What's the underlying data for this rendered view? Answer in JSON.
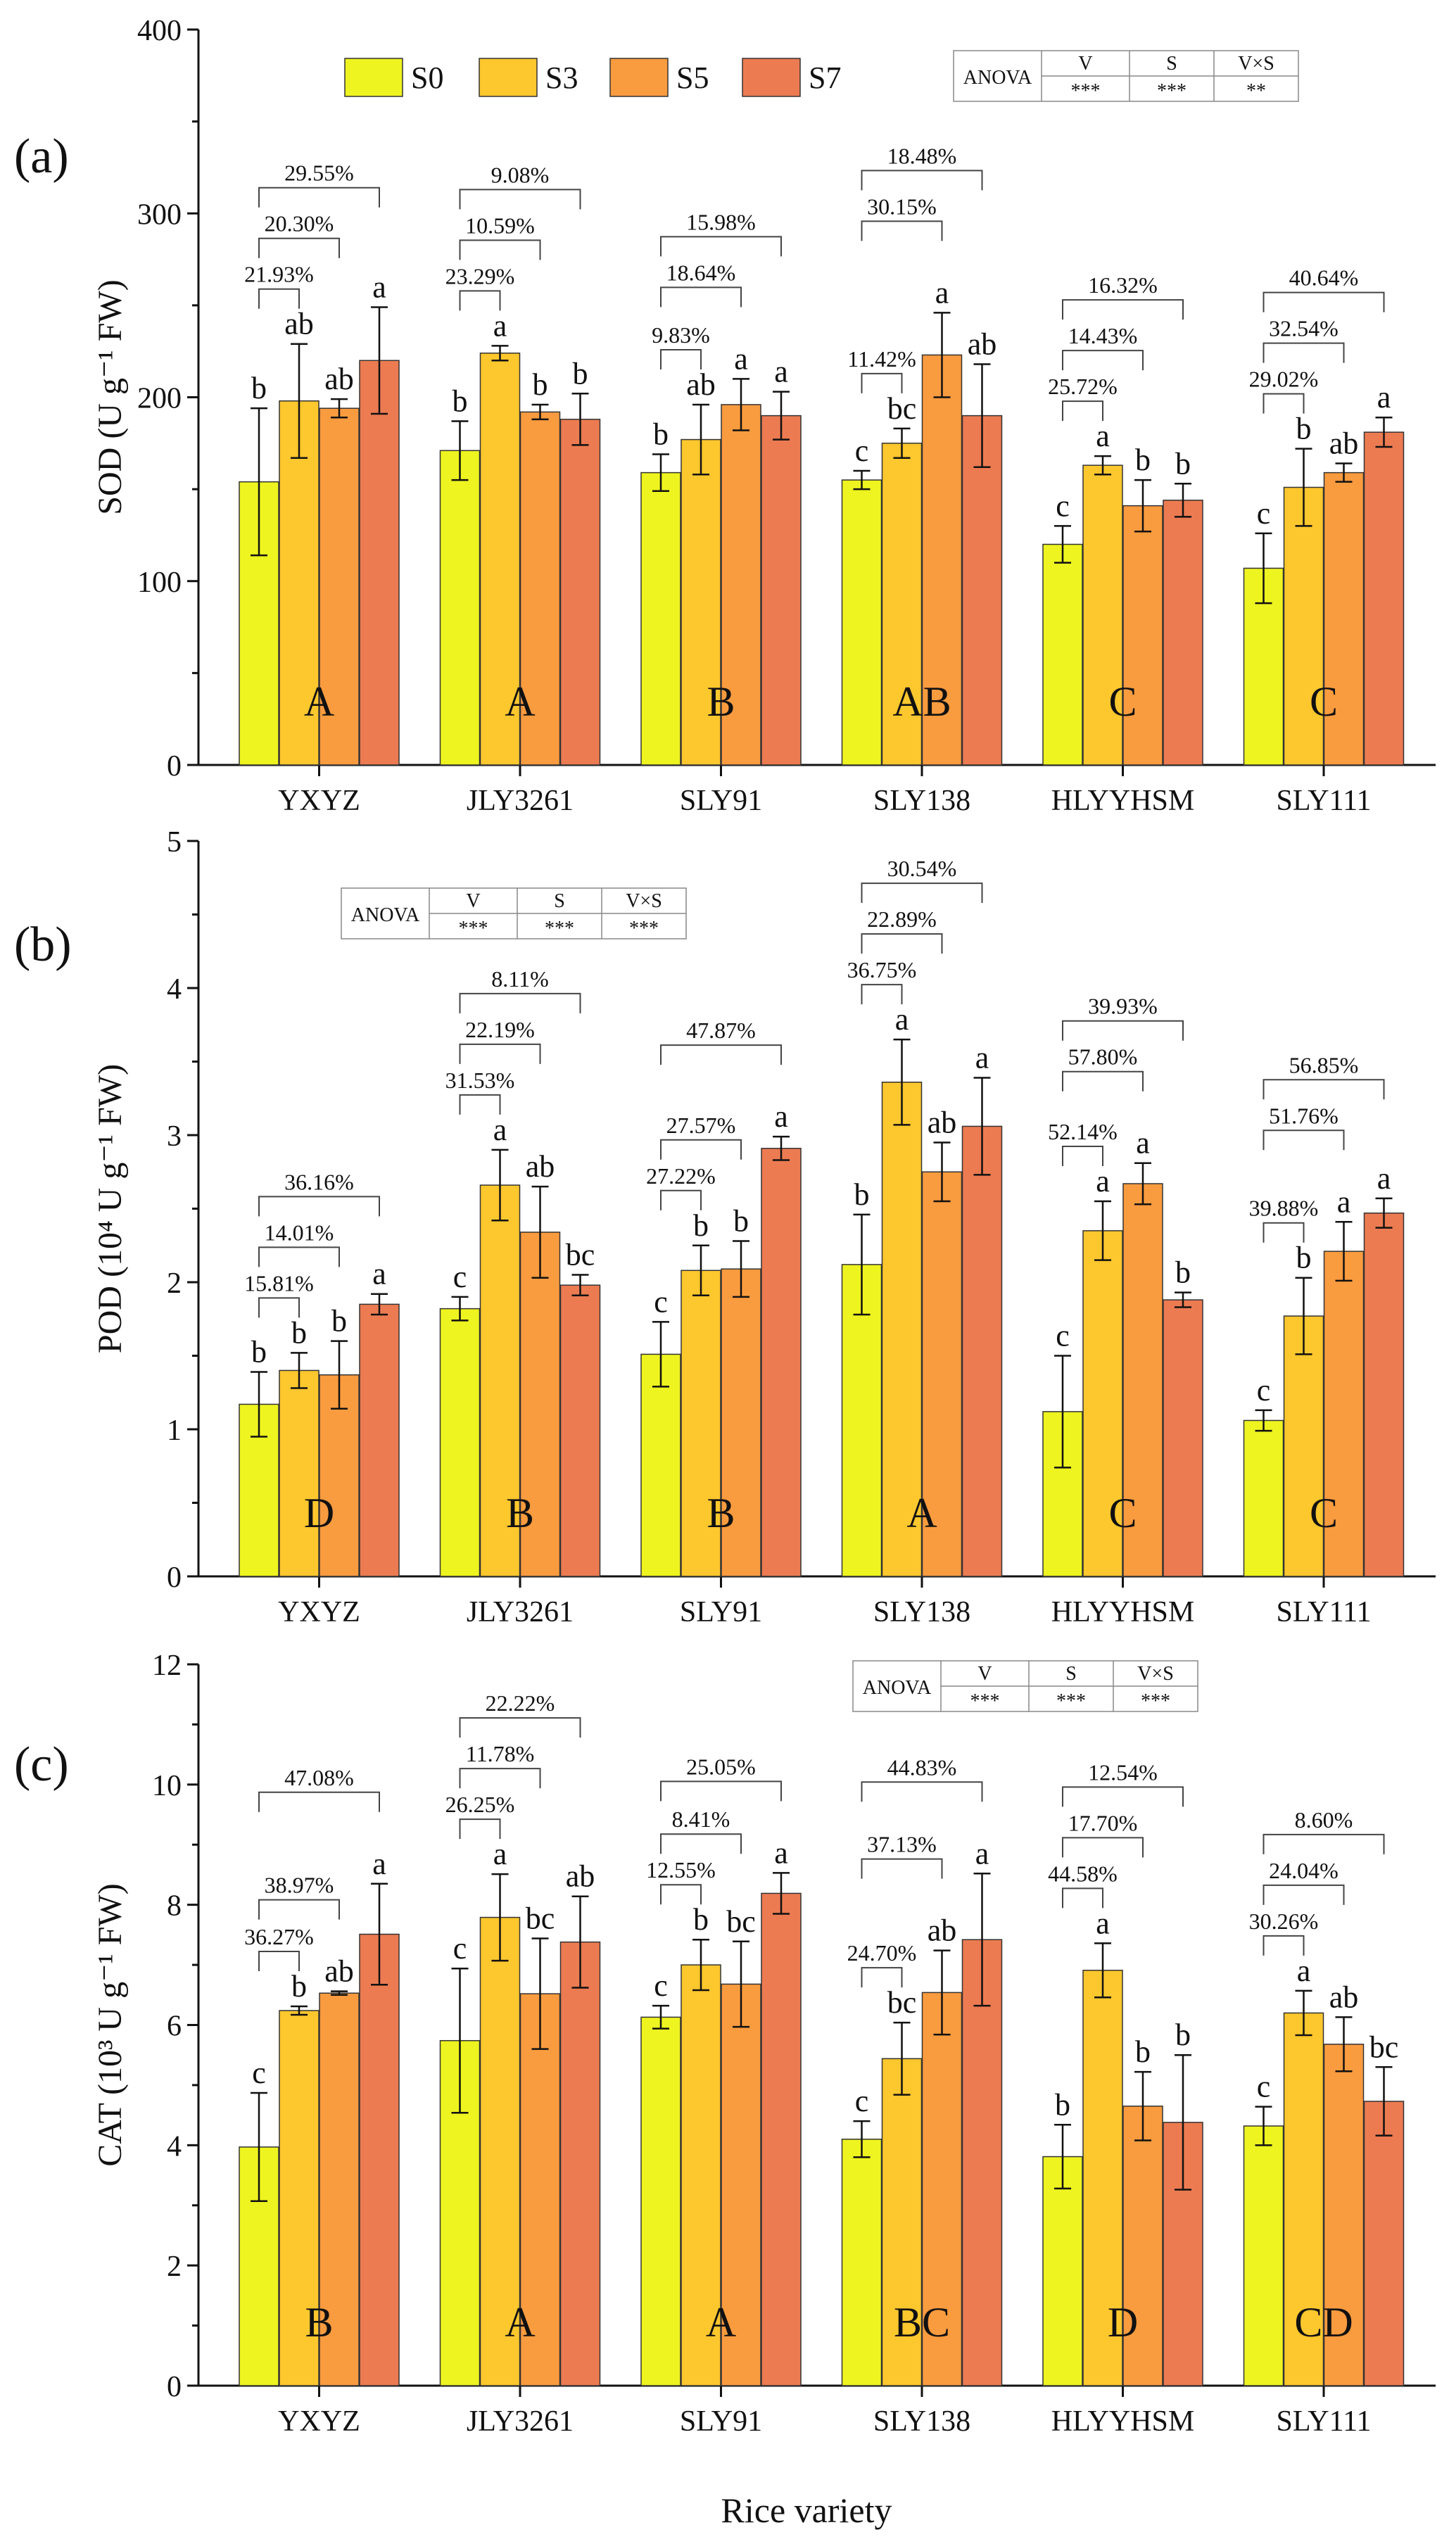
{
  "chart_data": {
    "type": "bar",
    "categories": [
      "YXYZ",
      "JLY3261",
      "SLY91",
      "SLY138",
      "HLYYHSM",
      "SLY111"
    ],
    "legend": [
      "S0",
      "S3",
      "S5",
      "S7"
    ],
    "colors": [
      "#eef41f",
      "#fdc72e",
      "#f99b3f",
      "#ec7b52"
    ],
    "xlabel": "Rice variety",
    "anova_headers": [
      "ANOVA",
      "V",
      "S",
      "V×S"
    ],
    "panels": [
      {
        "label": "(a)",
        "ylabel": "SOD (U g⁻¹ FW)",
        "ylim": [
          0,
          400
        ],
        "yticks": [
          0,
          100,
          200,
          300,
          400
        ],
        "anova": [
          "***",
          "***",
          "**"
        ],
        "values": [
          [
            154,
            198,
            194,
            220
          ],
          [
            171,
            224,
            192,
            188
          ],
          [
            159,
            177,
            196,
            190
          ],
          [
            155,
            175,
            223,
            190
          ],
          [
            120,
            163,
            141,
            144
          ],
          [
            107,
            151,
            159,
            181
          ]
        ],
        "errors": [
          [
            40,
            31,
            5,
            29
          ],
          [
            16,
            4,
            4,
            14
          ],
          [
            10,
            19,
            14,
            13
          ],
          [
            5,
            8,
            23,
            28
          ],
          [
            10,
            5,
            14,
            9
          ],
          [
            19,
            21,
            5,
            8
          ]
        ],
        "letters": [
          [
            "b",
            "ab",
            "ab",
            "a"
          ],
          [
            "b",
            "a",
            "b",
            "b"
          ],
          [
            "b",
            "ab",
            "a",
            "a"
          ],
          [
            "c",
            "bc",
            "a",
            "ab"
          ],
          [
            "c",
            "a",
            "b",
            "b"
          ],
          [
            "c",
            "b",
            "ab",
            "a"
          ]
        ],
        "groups": [
          "A",
          "A",
          "B",
          "AB",
          "C",
          "C"
        ],
        "percents": [
          [
            "21.93%",
            "20.30%",
            "29.55%"
          ],
          [
            "23.29%",
            "10.59%",
            "9.08%"
          ],
          [
            "9.83%",
            "18.64%",
            "15.98%"
          ],
          [
            "11.42%",
            "30.15%",
            "18.48%"
          ],
          [
            "25.72%",
            "14.43%",
            "16.32%"
          ],
          [
            "29.02%",
            "32.54%",
            "40.64%"
          ]
        ]
      },
      {
        "label": "(b)",
        "ylabel": "POD (10⁴ U g⁻¹ FW)",
        "ylim": [
          0,
          5
        ],
        "yticks": [
          0,
          1,
          2,
          3,
          4,
          5
        ],
        "anova": [
          "***",
          "***",
          "***"
        ],
        "values": [
          [
            1.17,
            1.4,
            1.37,
            1.85
          ],
          [
            1.82,
            2.66,
            2.34,
            1.98
          ],
          [
            1.51,
            2.08,
            2.09,
            2.91
          ],
          [
            2.12,
            3.36,
            2.75,
            3.06
          ],
          [
            1.12,
            2.35,
            2.67,
            1.88
          ],
          [
            1.06,
            1.77,
            2.21,
            2.47
          ]
        ],
        "errors": [
          [
            0.22,
            0.12,
            0.23,
            0.07
          ],
          [
            0.08,
            0.24,
            0.31,
            0.07
          ],
          [
            0.22,
            0.17,
            0.19,
            0.08
          ],
          [
            0.34,
            0.29,
            0.2,
            0.33
          ],
          [
            0.38,
            0.2,
            0.14,
            0.05
          ],
          [
            0.07,
            0.26,
            0.2,
            0.1
          ]
        ],
        "letters": [
          [
            "b",
            "b",
            "b",
            "a"
          ],
          [
            "c",
            "a",
            "ab",
            "bc"
          ],
          [
            "c",
            "b",
            "b",
            "a"
          ],
          [
            "b",
            "a",
            "ab",
            "a"
          ],
          [
            "c",
            "a",
            "a",
            "b"
          ],
          [
            "c",
            "b",
            "a",
            "a"
          ]
        ],
        "groups": [
          "D",
          "B",
          "B",
          "A",
          "C",
          "C"
        ],
        "percents": [
          [
            "15.81%",
            "14.01%",
            "36.16%"
          ],
          [
            "31.53%",
            "22.19%",
            "8.11%"
          ],
          [
            "27.22%",
            "27.57%",
            "47.87%"
          ],
          [
            "36.75%",
            "22.89%",
            "30.54%"
          ],
          [
            "52.14%",
            "57.80%",
            "39.93%"
          ],
          [
            "39.88%",
            "51.76%",
            "56.85%"
          ]
        ]
      },
      {
        "label": "(c)",
        "ylabel": "CAT (10³ U g⁻¹ FW)",
        "ylim": [
          0,
          12
        ],
        "yticks": [
          0,
          2,
          4,
          6,
          8,
          10,
          12
        ],
        "anova": [
          "***",
          "***",
          "***"
        ],
        "values": [
          [
            3.97,
            6.24,
            6.53,
            7.51
          ],
          [
            5.74,
            7.79,
            6.52,
            7.38
          ],
          [
            6.13,
            7.0,
            6.68,
            8.19
          ],
          [
            4.1,
            5.44,
            6.54,
            7.42
          ],
          [
            3.81,
            6.91,
            4.65,
            4.38
          ],
          [
            4.32,
            6.2,
            5.68,
            4.73
          ]
        ],
        "errors": [
          [
            0.9,
            0.07,
            0.03,
            0.84
          ],
          [
            1.2,
            0.72,
            0.92,
            0.76
          ],
          [
            0.19,
            0.42,
            0.71,
            0.34
          ],
          [
            0.3,
            0.6,
            0.7,
            1.1
          ],
          [
            0.53,
            0.45,
            0.57,
            1.12
          ],
          [
            0.32,
            0.37,
            0.45,
            0.57
          ]
        ],
        "letters": [
          [
            "c",
            "b",
            "ab",
            "a"
          ],
          [
            "c",
            "a",
            "bc",
            "ab"
          ],
          [
            "c",
            "b",
            "bc",
            "a"
          ],
          [
            "c",
            "bc",
            "ab",
            "a"
          ],
          [
            "b",
            "a",
            "b",
            "b"
          ],
          [
            "c",
            "a",
            "ab",
            "bc"
          ]
        ],
        "groups": [
          "B",
          "A",
          "A",
          "BC",
          "D",
          "CD"
        ],
        "percents": [
          [
            "36.27%",
            "38.97%",
            "47.08%"
          ],
          [
            "26.25%",
            "11.78%",
            "22.22%"
          ],
          [
            "12.55%",
            "8.41%",
            "25.05%"
          ],
          [
            "24.70%",
            "37.13%",
            "44.83%"
          ],
          [
            "44.58%",
            "17.70%",
            "12.54%"
          ],
          [
            "30.26%",
            "24.04%",
            "8.60%"
          ]
        ]
      }
    ]
  }
}
